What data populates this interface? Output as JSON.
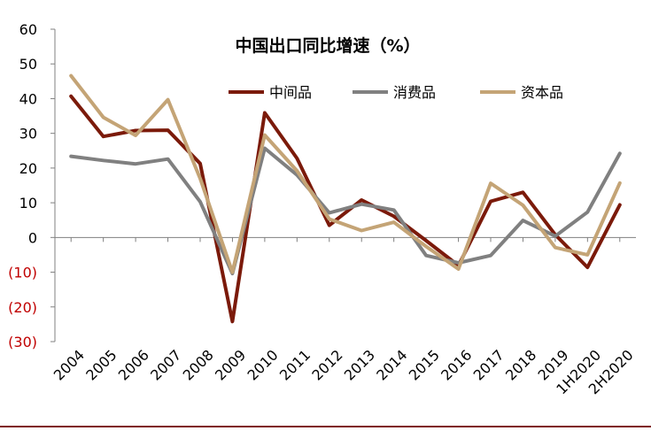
{
  "colors": {
    "background": "#ffffff",
    "axis": "#808080",
    "text": "#000000",
    "negative_text": "#c00000",
    "bottom_rule": "#7f1a1a"
  },
  "chart_data": {
    "type": "line",
    "title": "中国出口同比增速（%）",
    "xlabel": "",
    "ylabel": "",
    "x": [
      "2004",
      "2005",
      "2006",
      "2007",
      "2008",
      "2009",
      "2010",
      "2011",
      "2012",
      "2013",
      "2014",
      "2015",
      "2016",
      "2017",
      "2018",
      "2019",
      "1H2020",
      "2H2020"
    ],
    "ylim": [
      -30,
      60
    ],
    "yticks": [
      60,
      50,
      40,
      30,
      20,
      10,
      0,
      -10,
      -20,
      -30
    ],
    "ytick_labels": [
      "60",
      "50",
      "40",
      "30",
      "20",
      "10",
      "0",
      "(10)",
      "(20)",
      "(30)"
    ],
    "grid": false,
    "legend_position": "top-right",
    "series": [
      {
        "name": "中间品",
        "color": "#7b1a0a",
        "values": [
          40.7,
          29.1,
          30.8,
          30.9,
          21.3,
          -24.2,
          35.9,
          22.8,
          3.5,
          10.8,
          6.1,
          -0.9,
          -8.1,
          10.4,
          13.0,
          0.8,
          -8.6,
          9.4
        ]
      },
      {
        "name": "消费品",
        "color": "#808080",
        "values": [
          23.4,
          22.2,
          21.2,
          22.6,
          10.3,
          -10.4,
          25.7,
          18.0,
          7.1,
          9.6,
          7.9,
          -5.2,
          -7.3,
          -5.2,
          4.9,
          0.4,
          7.3,
          24.2
        ]
      },
      {
        "name": "资本品",
        "color": "#c4a476",
        "values": [
          46.6,
          34.6,
          29.4,
          39.7,
          17.0,
          -10.0,
          29.5,
          19.2,
          5.3,
          2.0,
          4.4,
          -2.6,
          -9.1,
          15.6,
          9.3,
          -2.9,
          -5.0,
          15.7
        ]
      }
    ]
  }
}
